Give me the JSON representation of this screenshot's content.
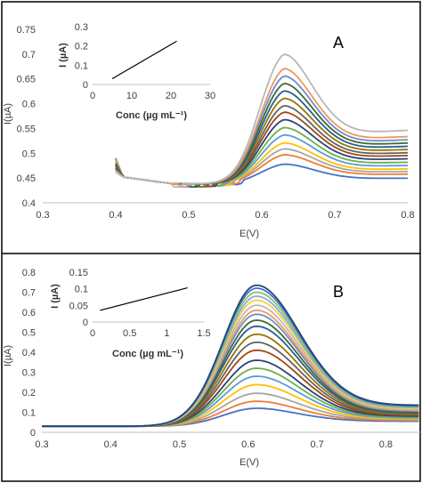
{
  "chart_data": [
    {
      "panel": "A",
      "type": "line",
      "xlabel": "E(V)",
      "ylabel": "I(µA)",
      "xlim": [
        0.3,
        0.8
      ],
      "ylim": [
        0.4,
        0.75
      ],
      "xticks": [
        "0.3",
        "0.4",
        "0.5",
        "0.6",
        "0.7",
        "0.8"
      ],
      "yticks": [
        "0.4",
        "0.45",
        "0.5",
        "0.55",
        "0.6",
        "0.65",
        "0.7",
        "0.75"
      ],
      "grid": false,
      "legend": "none",
      "peak_potential": 0.63,
      "curve_count": 15,
      "series_colors": [
        "#4472c4",
        "#ed7d31",
        "#a5a5a5",
        "#ffc000",
        "#5b9bd5",
        "#70ad47",
        "#264478",
        "#9e480e",
        "#636363",
        "#997300",
        "#255e91",
        "#43682b",
        "#698ed0",
        "#f1975a",
        "#b7b7b7"
      ],
      "baseline_at_0_8": 0.45,
      "peak_currents": [
        0.478,
        0.497,
        0.509,
        0.521,
        0.537,
        0.552,
        0.568,
        0.583,
        0.596,
        0.611,
        0.626,
        0.641,
        0.656,
        0.671,
        0.7
      ],
      "inset": {
        "type": "line",
        "xlabel": "Conc (µg mL⁻¹)",
        "ylabel": "I (µA)",
        "xlim": [
          0,
          30
        ],
        "ylim": [
          0,
          0.3
        ],
        "xticks": [
          "0",
          "10",
          "20",
          "30"
        ],
        "yticks": [
          "0",
          "0.1",
          "0.2",
          "0.3"
        ],
        "x": [
          5,
          21.5
        ],
        "y": [
          0.03,
          0.225
        ]
      }
    },
    {
      "panel": "B",
      "type": "line",
      "xlabel": "E(V)",
      "ylabel": "I(µA)",
      "xlim": [
        0.3,
        0.85
      ],
      "ylim": [
        0,
        0.8
      ],
      "xticks": [
        "0.3",
        "0.4",
        "0.5",
        "0.6",
        "0.7",
        "0.8"
      ],
      "yticks": [
        "0",
        "0.1",
        "0.2",
        "0.3",
        "0.4",
        "0.5",
        "0.6",
        "0.7",
        "0.8"
      ],
      "grid": false,
      "legend": "none",
      "peak_potential": 0.612,
      "curve_count": 20,
      "series_colors": [
        "#4472c4",
        "#ed7d31",
        "#a5a5a5",
        "#ffc000",
        "#5b9bd5",
        "#70ad47",
        "#264478",
        "#9e480e",
        "#636363",
        "#997300",
        "#255e91",
        "#43682b",
        "#698ed0",
        "#f1975a",
        "#b7b7b7",
        "#ffcd33",
        "#7cafdd",
        "#8cc168",
        "#4472c4",
        "#264478"
      ],
      "baseline_at_0_3": 0.03,
      "peak_currents": [
        0.12,
        0.155,
        0.195,
        0.238,
        0.28,
        0.32,
        0.36,
        0.41,
        0.45,
        0.49,
        0.53,
        0.56,
        0.59,
        0.61,
        0.635,
        0.66,
        0.68,
        0.7,
        0.72,
        0.735
      ],
      "inset": {
        "type": "line",
        "xlabel": "Conc (µg mL⁻¹)",
        "ylabel": "I (µA)",
        "xlim": [
          0,
          1.5
        ],
        "ylim": [
          0,
          0.15
        ],
        "xticks": [
          "0",
          "0.5",
          "1",
          "1.5"
        ],
        "yticks": [
          "0",
          "0.05",
          "0.1",
          "0.15"
        ],
        "x": [
          0.1,
          1.28
        ],
        "y": [
          0.035,
          0.103
        ]
      }
    }
  ]
}
